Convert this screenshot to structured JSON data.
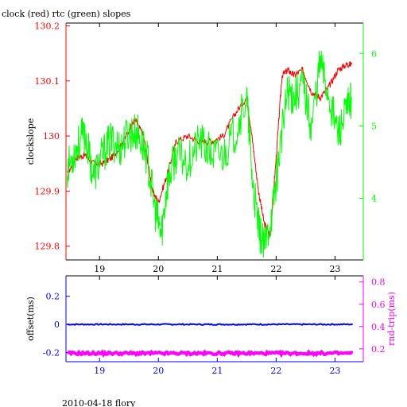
{
  "title": "clock (red) rtc (green) slopes",
  "footer": "2010-04-18 flory",
  "chart_data": [
    {
      "type": "line",
      "ylabel_left": "clockslope",
      "x_ticks": [
        "19",
        "20",
        "21",
        "22",
        "23"
      ],
      "x_tick_values": [
        19,
        20,
        21,
        22,
        23
      ],
      "xlim": [
        18.43,
        23.48
      ],
      "y_left_ticks": [
        "130.2",
        "130.1",
        "130",
        "129.9",
        "129.8"
      ],
      "y_left_tick_values": [
        130.2,
        130.1,
        130.0,
        129.9,
        129.8
      ],
      "ylim_left": [
        129.775,
        130.205
      ],
      "y_right_ticks": [
        "6",
        "5",
        "4"
      ],
      "y_right_tick_values": [
        6,
        5,
        4
      ],
      "ylim_right": [
        3.15,
        6.42
      ],
      "colors": {
        "left_axis": "#ff0000",
        "right_axis": "#00ff00",
        "frame": "#000000"
      },
      "series": [
        {
          "color": "#ff0000",
          "axis": "left",
          "x": [
            18.45,
            18.6,
            18.75,
            18.9,
            19.05,
            19.2,
            19.35,
            19.5,
            19.6,
            19.75,
            19.9,
            20.0,
            20.15,
            20.3,
            20.5,
            20.7,
            20.9,
            21.1,
            21.3,
            21.5,
            21.6,
            21.7,
            21.8,
            21.9,
            22.0,
            22.1,
            22.2,
            22.3,
            22.45,
            22.6,
            22.75,
            22.9,
            23.05,
            23.2,
            23.28
          ],
          "y": [
            129.93,
            129.96,
            129.965,
            129.95,
            129.95,
            129.96,
            129.98,
            130.01,
            130.03,
            130.0,
            129.9,
            129.88,
            129.93,
            129.99,
            130.0,
            129.99,
            129.99,
            130.0,
            130.04,
            130.07,
            129.99,
            129.9,
            129.84,
            129.82,
            129.96,
            130.11,
            130.12,
            130.11,
            130.12,
            130.08,
            130.07,
            130.09,
            130.12,
            130.13,
            130.13
          ]
        },
        {
          "color": "#00ff00",
          "axis": "right",
          "x": [
            18.45,
            18.6,
            18.75,
            18.9,
            19.05,
            19.2,
            19.35,
            19.5,
            19.65,
            19.8,
            19.95,
            20.05,
            20.15,
            20.3,
            20.5,
            20.7,
            20.9,
            21.1,
            21.3,
            21.5,
            21.6,
            21.7,
            21.8,
            21.95,
            22.05,
            22.2,
            22.3,
            22.45,
            22.6,
            22.75,
            22.9,
            23.05,
            23.2,
            23.28
          ],
          "y": [
            4.4,
            4.7,
            4.9,
            4.3,
            4.6,
            4.8,
            4.7,
            4.9,
            4.9,
            4.6,
            3.8,
            3.5,
            4.2,
            4.6,
            4.5,
            4.8,
            4.6,
            4.6,
            4.9,
            5.4,
            4.2,
            3.6,
            3.3,
            3.9,
            4.6,
            5.5,
            5.4,
            5.6,
            5.0,
            5.9,
            5.4,
            4.9,
            5.2,
            5.4
          ]
        }
      ]
    },
    {
      "type": "scatter",
      "ylabel_left": "offset(ms)",
      "ylabel_right": "rnd-trip(ms)",
      "x_ticks": [
        "19",
        "20",
        "21",
        "22",
        "23"
      ],
      "x_tick_values": [
        19,
        20,
        21,
        22,
        23
      ],
      "xlim": [
        18.43,
        23.48
      ],
      "y_left_ticks": [
        "0.2",
        "0",
        "-0.2"
      ],
      "y_left_tick_values": [
        0.2,
        0.0,
        -0.2
      ],
      "ylim_left": [
        -0.265,
        0.345
      ],
      "y_right_ticks": [
        "0.8",
        "0.6",
        "0.4",
        "0.2"
      ],
      "y_right_tick_values": [
        0.8,
        0.6,
        0.4,
        0.2
      ],
      "ylim_right": [
        0.085,
        0.855
      ],
      "colors": {
        "left_axis": "#0000ff",
        "right_axis": "#ff00ff",
        "frame": "#000000"
      },
      "series": [
        {
          "color": "#0000ff",
          "axis": "left",
          "x": [
            18.45,
            23.3
          ],
          "y": [
            0.0,
            0.0
          ]
        },
        {
          "color": "#ff00ff",
          "axis": "right",
          "x": [
            18.45,
            23.3
          ],
          "y": [
            0.16,
            0.16
          ]
        }
      ]
    }
  ]
}
